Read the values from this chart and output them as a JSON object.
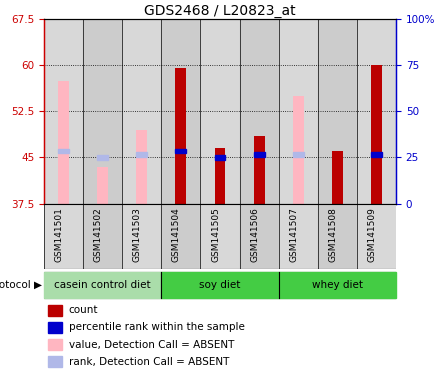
{
  "title": "GDS2468 / L20823_at",
  "samples": [
    "GSM141501",
    "GSM141502",
    "GSM141503",
    "GSM141504",
    "GSM141505",
    "GSM141506",
    "GSM141507",
    "GSM141508",
    "GSM141509"
  ],
  "absent_value": [
    57.5,
    43.5,
    49.5,
    null,
    null,
    null,
    55.0,
    null,
    null
  ],
  "absent_rank_y": [
    46.0,
    45.0,
    45.5,
    null,
    null,
    null,
    45.5,
    null,
    null
  ],
  "present_value": [
    null,
    null,
    null,
    59.5,
    46.5,
    48.5,
    null,
    46.0,
    60.0
  ],
  "present_rank_y": [
    null,
    null,
    null,
    46.0,
    45.0,
    45.5,
    null,
    null,
    45.5
  ],
  "ylim": [
    37.5,
    67.5
  ],
  "yticks": [
    37.5,
    45.0,
    52.5,
    60.0,
    67.5
  ],
  "yticklabels": [
    "37.5",
    "45",
    "52.5",
    "60",
    "67.5"
  ],
  "y2lim": [
    0,
    100
  ],
  "y2ticks": [
    0,
    25,
    50,
    75,
    100
  ],
  "y2ticklabels": [
    "0",
    "25",
    "50",
    "75",
    "100%"
  ],
  "left_color": "#cc0000",
  "right_color": "#0000cc",
  "absent_bar_color": "#ffb6c1",
  "absent_rank_color": "#b0b8e8",
  "present_bar_color": "#bb0000",
  "present_rank_color": "#0000cc",
  "bar_width": 0.28,
  "groups": [
    {
      "label": "casein control diet",
      "start": 0,
      "end": 2,
      "color": "#aaddaa"
    },
    {
      "label": "soy diet",
      "start": 3,
      "end": 5,
      "color": "#44cc44"
    },
    {
      "label": "whey diet",
      "start": 6,
      "end": 8,
      "color": "#44cc44"
    }
  ],
  "col_bg_colors": [
    "#d8d8d8",
    "#d0d0d0",
    "#d8d8d8",
    "#d0d0d0",
    "#d8d8d8",
    "#d0d0d0",
    "#d8d8d8",
    "#d0d0d0",
    "#d8d8d8"
  ]
}
